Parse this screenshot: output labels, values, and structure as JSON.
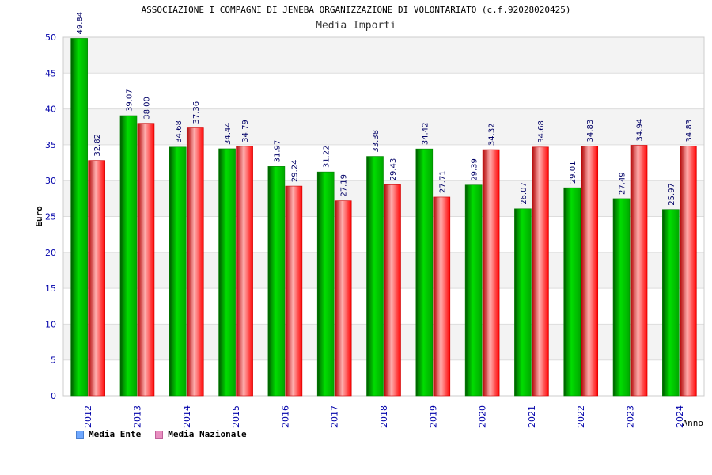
{
  "chart_data": {
    "type": "bar",
    "title": "ASSOCIAZIONE I COMPAGNI DI JENEBA ORGANIZZAZIONE DI VOLONTARIATO (c.f.92028020425)",
    "subtitle": "Media Importi",
    "xlabel": "Anno",
    "ylabel": "Euro",
    "ylim": [
      0,
      50
    ],
    "yticks": [
      0,
      5,
      10,
      15,
      20,
      25,
      30,
      35,
      40,
      45,
      50
    ],
    "grid": true,
    "legend_position": "bottom-left",
    "categories": [
      "2012",
      "2013",
      "2014",
      "2015",
      "2016",
      "2017",
      "2018",
      "2019",
      "2020",
      "2021",
      "2022",
      "2023",
      "2024"
    ],
    "series": [
      {
        "name": "Media Ente",
        "color": "#00c000",
        "legend_color": "#6fa8ff",
        "values": [
          49.84,
          39.07,
          34.68,
          34.44,
          31.97,
          31.22,
          33.38,
          34.42,
          29.39,
          26.07,
          29.01,
          27.49,
          25.97
        ],
        "labels": [
          "49.84",
          "39.07",
          "34.68",
          "34.44",
          "31.97",
          "31.22",
          "33.38",
          "34.42",
          "29.39",
          "26.07",
          "29.01",
          "27.49",
          "25.97"
        ]
      },
      {
        "name": "Media Nazionale",
        "color": "#ff0000",
        "legend_color": "#e88fc0",
        "values": [
          32.82,
          38.0,
          37.36,
          34.79,
          29.24,
          27.19,
          29.43,
          27.71,
          34.32,
          34.68,
          34.83,
          34.94,
          34.83
        ],
        "labels": [
          "32.82",
          "38.00",
          "37.36",
          "34.79",
          "29.24",
          "27.19",
          "29.43",
          "27.71",
          "34.32",
          "34.68",
          "34.83",
          "34.94",
          "34.83"
        ]
      }
    ]
  }
}
